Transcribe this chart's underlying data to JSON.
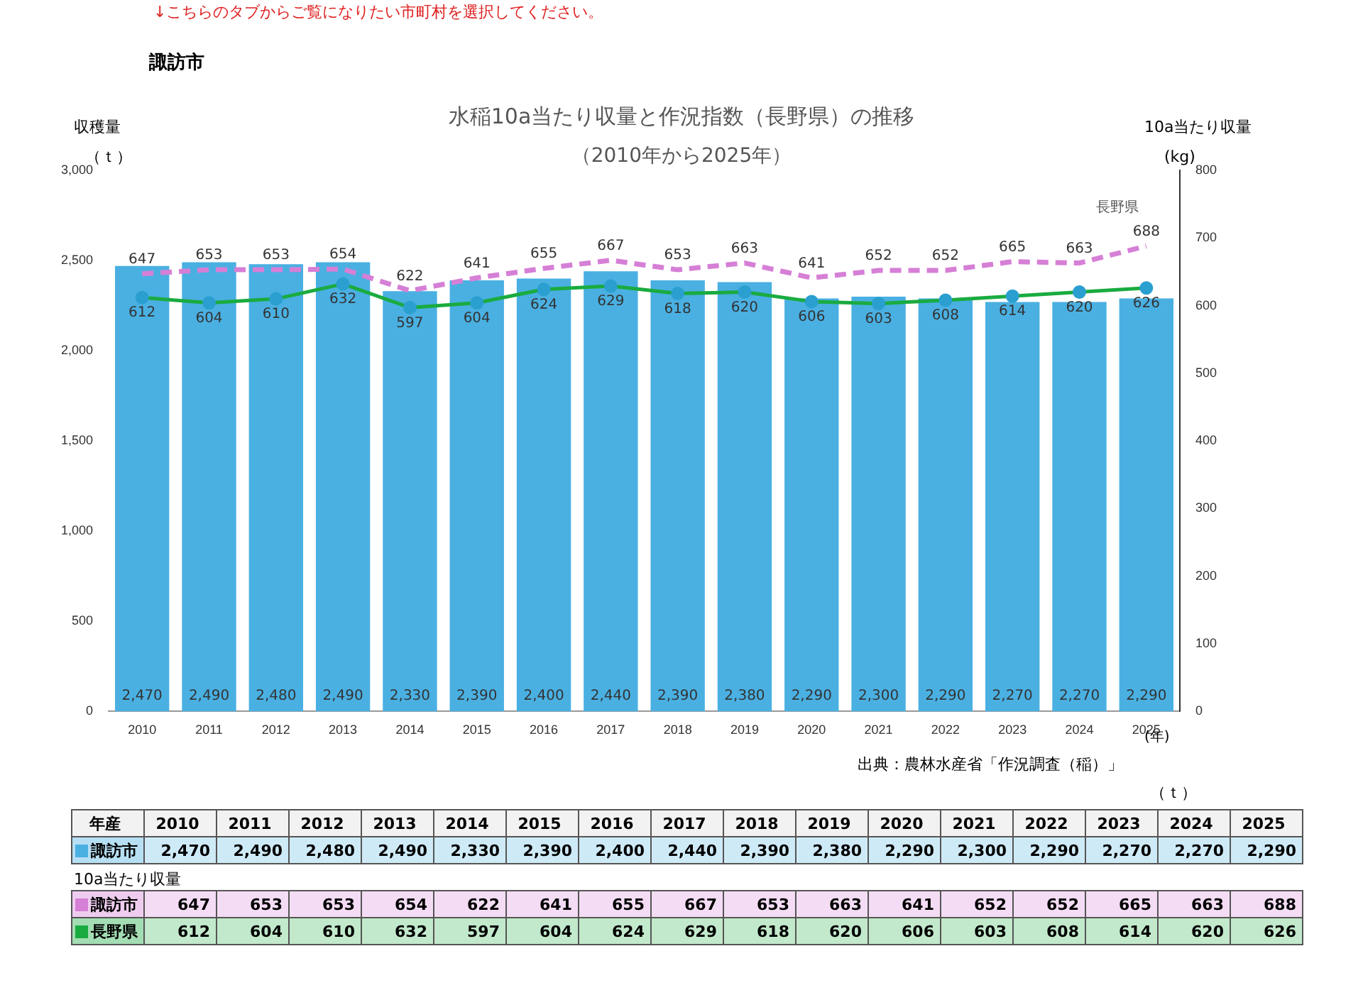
{
  "chart_data": {
    "type": "bar",
    "title": "水稲10a当たり収量と作況指数（長野県）の推移",
    "subtitle": "（2010年から2025年）",
    "xlabel": "(年)",
    "ylabel": "収穫量（ｔ）",
    "y2label": "10a当たり収量(kg)",
    "annotations": [
      "↓こちらのタブからご覧になりたい市町村を選択してください。",
      "諏訪市",
      "出典：農林水産省「作況調査（稲）」",
      "（ｔ）",
      "10a当たり収量",
      "長野県",
      "年産"
    ],
    "categories": [
      "2010",
      "2011",
      "2012",
      "2013",
      "2014",
      "2015",
      "2016",
      "2017",
      "2018",
      "2019",
      "2020",
      "2021",
      "2022",
      "2023",
      "2024",
      "2025"
    ],
    "series": [
      {
        "name": "諏訪市",
        "color": "#4ab0e2",
        "values": [
          2470,
          2490,
          2480,
          2490,
          2330,
          2390,
          2400,
          2440,
          2390,
          2380,
          2290,
          2300,
          2290,
          2270,
          2270,
          2290
        ],
        "value_labels": [
          "2,470",
          "2,490",
          "2,480",
          "2,490",
          "2,330",
          "2,390",
          "2,400",
          "2,440",
          "2,390",
          "2,380",
          "2,290",
          "2,300",
          "2,290",
          "2,270",
          "2,270",
          "2,290"
        ]
      },
      {
        "name": "諏訪市",
        "type": "line",
        "axis": "y2",
        "color": "#d67fd6",
        "line_style": "dashed",
        "marker": "none",
        "values": [
          647,
          653,
          653,
          654,
          622,
          641,
          655,
          667,
          653,
          663,
          641,
          652,
          652,
          665,
          663,
          688
        ],
        "value_labels": [
          "647",
          "653",
          "653",
          "654",
          "622",
          "641",
          "655",
          "667",
          "653",
          "663",
          "641",
          "652",
          "652",
          "665",
          "663",
          "688"
        ]
      },
      {
        "name": "長野県",
        "type": "line",
        "axis": "y2",
        "color": "#1aab40",
        "line_style": "solid",
        "marker": "circle",
        "values": [
          612,
          604,
          610,
          632,
          597,
          604,
          624,
          629,
          618,
          620,
          606,
          603,
          608,
          614,
          620,
          626
        ],
        "value_labels": [
          "612",
          "604",
          "610",
          "632",
          "597",
          "604",
          "624",
          "629",
          "618",
          "620",
          "606",
          "603",
          "608",
          "614",
          "620",
          "626"
        ]
      }
    ],
    "ylim": [
      0,
      3000
    ],
    "yticks": [
      {
        "value": 0,
        "label": "0"
      },
      {
        "value": 500,
        "label": "500"
      },
      {
        "value": 1000,
        "label": "1,000"
      },
      {
        "value": 1500,
        "label": "1,500"
      },
      {
        "value": 2000,
        "label": "2,000"
      },
      {
        "value": 2500,
        "label": "2,500"
      },
      {
        "value": 3000,
        "label": "3,000"
      }
    ],
    "y2lim": [
      0,
      800
    ],
    "y2ticks": [
      0,
      100,
      200,
      300,
      400,
      500,
      600,
      700,
      800
    ],
    "grid": false,
    "legend": "bottom",
    "data_labels": true
  }
}
